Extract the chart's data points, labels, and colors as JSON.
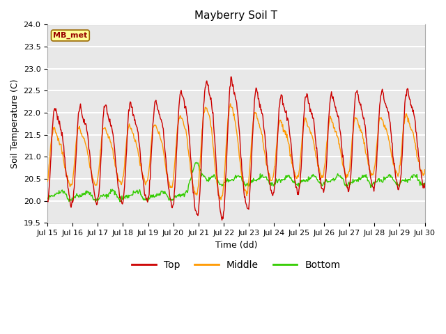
{
  "title": "Mayberry Soil T",
  "ylabel": "Soil Temperature (C)",
  "xlabel": "Time (dd)",
  "ylim": [
    19.5,
    24.0
  ],
  "xlim": [
    0,
    720
  ],
  "annotation_text": "MB_met",
  "legend_labels": [
    "Top",
    "Middle",
    "Bottom"
  ],
  "line_colors": [
    "#cc0000",
    "#ff9900",
    "#33cc00"
  ],
  "background_color": "#ffffff",
  "plot_bg_color": "#e8e8e8",
  "x_tick_labels": [
    "Jul 15",
    "Jul 16",
    "Jul 17",
    "Jul 18",
    "Jul 19",
    "Jul 20",
    "Jul 21",
    "Jul 22",
    "Jul 23",
    "Jul 24",
    "Jul 25",
    "Jul 26",
    "Jul 27",
    "Jul 28",
    "Jul 29",
    "Jul 30"
  ],
  "x_tick_positions": [
    0,
    48,
    96,
    144,
    192,
    240,
    288,
    336,
    384,
    432,
    480,
    528,
    576,
    624,
    672,
    720
  ],
  "y_ticks": [
    19.5,
    20.0,
    20.5,
    21.0,
    21.5,
    22.0,
    22.5,
    23.0,
    23.5,
    24.0
  ],
  "n_points": 721,
  "title_fontsize": 11,
  "label_fontsize": 9,
  "tick_fontsize": 8,
  "grid_color": "#ffffff",
  "grid_linewidth": 1.5,
  "line_width": 1.0
}
